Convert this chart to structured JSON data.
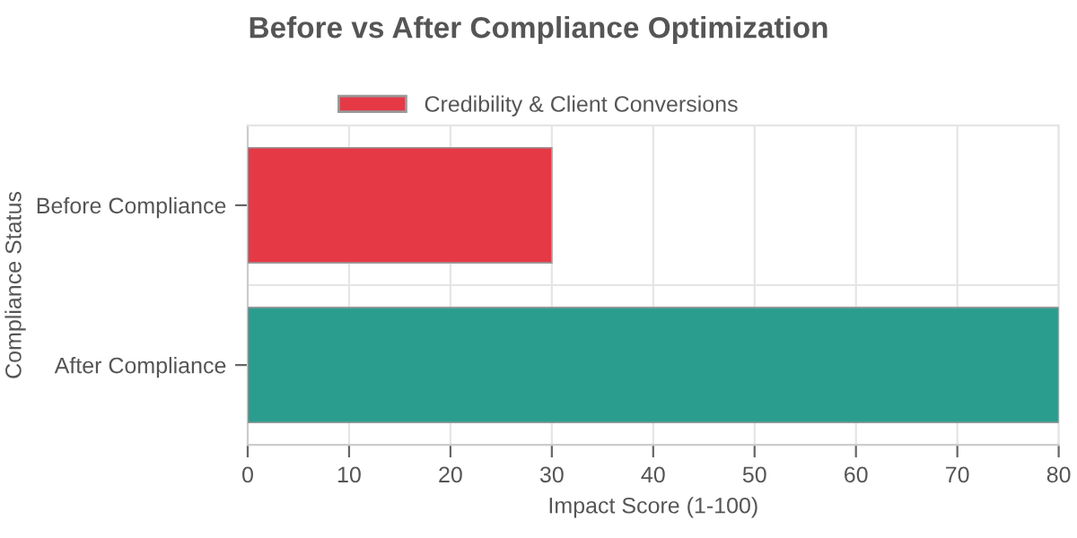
{
  "chart_data": {
    "type": "bar",
    "orientation": "horizontal",
    "title": "Before vs After Compliance Optimization",
    "xlabel": "Impact Score (1-100)",
    "ylabel": "Compliance Status",
    "categories": [
      "Before Compliance",
      "After Compliance"
    ],
    "series": [
      {
        "name": "Credibility & Client Conversions",
        "color": "#e63946",
        "colors": [
          "#e63946",
          "#2a9d8f"
        ],
        "values": [
          30,
          80
        ]
      }
    ],
    "xlim": [
      0,
      80
    ],
    "xticks": [
      0,
      10,
      20,
      30,
      40,
      50,
      60,
      70,
      80
    ],
    "grid": true,
    "legend": "top"
  }
}
